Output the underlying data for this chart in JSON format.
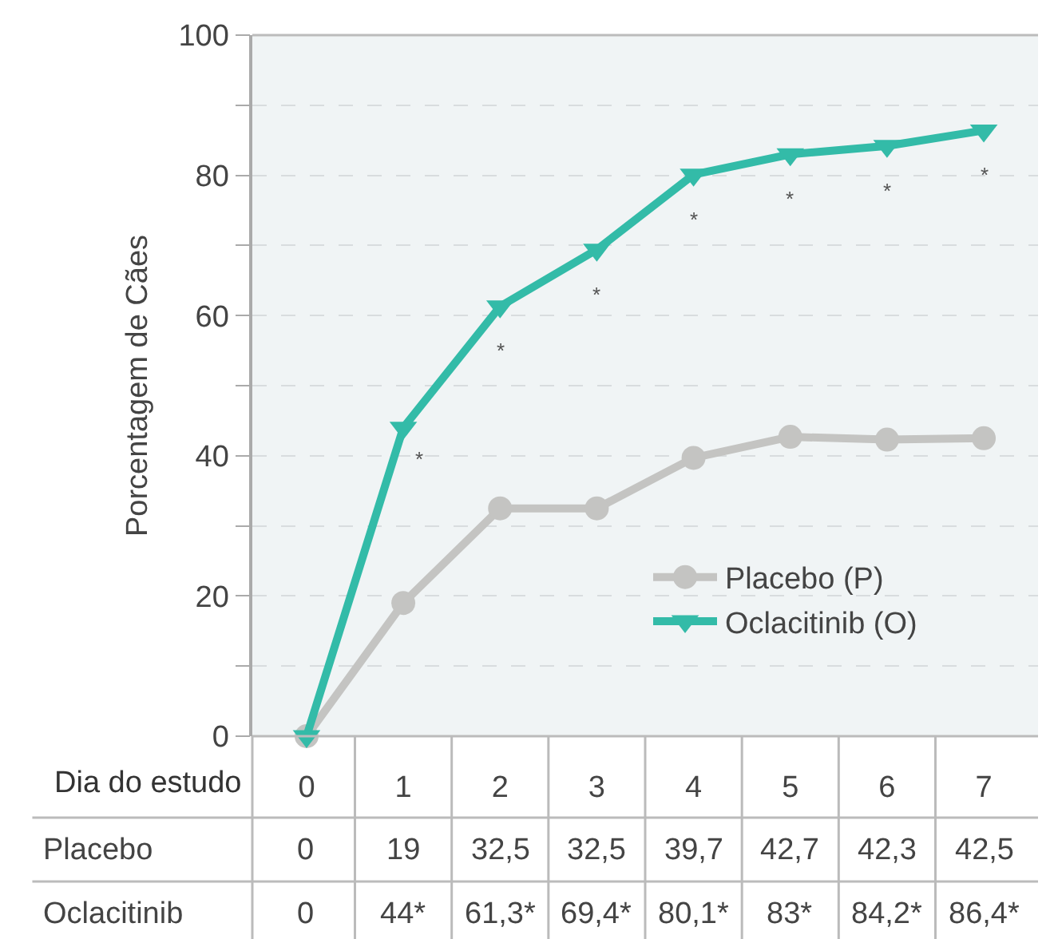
{
  "chart_data": {
    "type": "line",
    "ylabel": "Porcentagem de Cães",
    "xlabel": "Dia do estudo",
    "categories": [
      "0",
      "1",
      "2",
      "3",
      "4",
      "5",
      "6",
      "7"
    ],
    "series": [
      {
        "name": "Placebo (P)",
        "color": "#c4c4c2",
        "marker": "circle",
        "values": [
          0,
          19,
          32.5,
          32.5,
          39.7,
          42.7,
          42.3,
          42.5
        ],
        "value_labels": [
          "0",
          "19",
          "32,5",
          "32,5",
          "39,7",
          "42,7",
          "42,3",
          "42,5"
        ]
      },
      {
        "name": "Oclacitinib (O)",
        "color": "#33bba8",
        "marker": "triangle",
        "values": [
          0,
          44,
          61.3,
          69.4,
          80.1,
          83,
          84.2,
          86.4
        ],
        "value_labels": [
          "0",
          "44*",
          "61,3*",
          "69,4*",
          "80,1*",
          "83*",
          "84,2*",
          "86,4*"
        ]
      }
    ],
    "ylim": [
      0,
      100
    ],
    "yticks": [
      0,
      {
        "value": 10,
        "label": null
      },
      20,
      {
        "value": 30,
        "label": null
      },
      40,
      {
        "value": 50,
        "label": null
      },
      60,
      {
        "value": 70,
        "label": null
      },
      80,
      {
        "value": 90,
        "label": null
      },
      100
    ],
    "grid": "y",
    "legend": "bottom right",
    "line_style": "solid",
    "annotations": [
      "Placebo",
      "Oclacitinib",
      "*",
      "*",
      "*",
      "*",
      "*",
      "*",
      "*"
    ]
  }
}
